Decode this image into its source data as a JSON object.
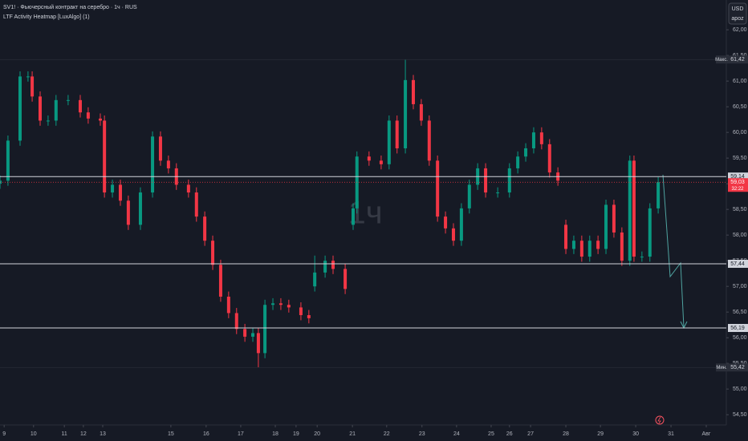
{
  "chart_data": {
    "type": "candlestick",
    "title": "SV1! · Фьючерсный контракт на серебро · 1ч · RUS",
    "subtitle": "LTF Activity Heatmap [LuxAlgo] (1)",
    "watermark": "1ч",
    "currency": "USD",
    "currency_note": "apoz",
    "up_color": "#089981",
    "down_color": "#f23645",
    "grid": false,
    "x": [
      0,
      2.3,
      5.8,
      8.1,
      9.3,
      11.6,
      13.9,
      16.2,
      19.7,
      23.2,
      25.5,
      29.0,
      30.2,
      32.5,
      34.8,
      37.1,
      40.6,
      44.1,
      46.4,
      48.7,
      51.0,
      54.5,
      56.8,
      59.2,
      61.5,
      63.8,
      66.1,
      68.4,
      70.8,
      73.1,
      74.7,
      76.6,
      78.9,
      81.2,
      83.5,
      87.0,
      89.3,
      91.0,
      94.0,
      96.3,
      99.8,
      102.1,
      103.2,
      106.7,
      110.2,
      112.5,
      114.8,
      117.2,
      119.5,
      121.8,
      124.1,
      126.5,
      128.8,
      131.1,
      133.4,
      135.7,
      138.1,
      140.4,
      143.9,
      147.3,
      149.7,
      152.0,
      154.3,
      156.6,
      158.9,
      161.3,
      163.6,
      165.9,
      168.2,
      170.5,
      172.9,
      175.2,
      177.5,
      179.8,
      182.1,
      183.3,
      185.6,
      187.9,
      190.3
    ],
    "open": [
      59.0,
      59.06,
      59.84,
      61.09,
      61.09,
      60.7,
      60.23,
      60.23,
      60.63,
      60.63,
      60.39,
      60.27,
      60.23,
      58.83,
      58.98,
      58.67,
      58.2,
      58.83,
      59.92,
      59.45,
      59.3,
      58.98,
      58.83,
      58.36,
      57.89,
      57.42,
      56.8,
      56.48,
      56.17,
      56.02,
      56.09,
      55.7,
      56.64,
      56.67,
      56.64,
      56.59,
      56.44,
      57.0,
      57.27,
      57.5,
      57.34,
      58.2,
      58.52,
      59.53,
      59.45,
      59.38,
      60.23,
      59.69,
      61.02,
      60.55,
      60.23,
      59.45,
      58.36,
      58.13,
      57.89,
      58.52,
      58.98,
      59.3,
      58.83,
      58.83,
      59.3,
      59.53,
      59.69,
      60.0,
      59.77,
      59.22,
      58.2,
      57.73,
      57.89,
      57.58,
      57.89,
      57.73,
      58.59,
      58.05,
      57.5,
      59.45,
      57.58,
      57.58,
      58.52
    ],
    "high": [
      59.16,
      59.94,
      61.19,
      61.19,
      61.19,
      60.8,
      60.33,
      60.73,
      60.73,
      60.73,
      60.49,
      60.37,
      60.33,
      59.08,
      59.08,
      58.77,
      58.93,
      60.02,
      60.02,
      59.55,
      59.4,
      59.08,
      58.93,
      58.46,
      57.99,
      57.52,
      56.9,
      56.58,
      56.27,
      56.19,
      56.19,
      56.74,
      56.77,
      56.77,
      56.74,
      56.69,
      56.54,
      57.6,
      57.6,
      57.6,
      57.44,
      58.62,
      59.63,
      59.63,
      59.55,
      60.33,
      60.33,
      61.42,
      61.12,
      60.65,
      60.33,
      59.55,
      58.46,
      58.23,
      58.62,
      59.08,
      59.4,
      59.4,
      58.93,
      59.4,
      59.63,
      59.79,
      60.1,
      60.1,
      59.87,
      59.32,
      58.3,
      57.99,
      57.99,
      57.99,
      57.99,
      58.69,
      58.69,
      58.15,
      59.55,
      59.55,
      57.68,
      58.62,
      59.13
    ],
    "low": [
      58.9,
      58.96,
      59.74,
      60.99,
      60.6,
      60.13,
      60.13,
      60.13,
      60.53,
      60.29,
      60.17,
      60.13,
      58.73,
      58.73,
      58.57,
      58.1,
      58.1,
      58.73,
      59.35,
      59.2,
      58.88,
      58.73,
      58.26,
      57.79,
      57.32,
      56.7,
      56.38,
      56.07,
      55.92,
      55.92,
      55.42,
      55.6,
      56.54,
      56.54,
      56.49,
      56.34,
      56.28,
      56.9,
      57.17,
      57.24,
      56.85,
      58.1,
      58.42,
      59.35,
      59.28,
      59.28,
      59.59,
      59.59,
      60.45,
      60.13,
      59.35,
      58.26,
      58.03,
      57.79,
      57.79,
      58.42,
      58.88,
      58.73,
      58.73,
      58.73,
      59.2,
      59.43,
      59.59,
      59.67,
      59.12,
      58.96,
      57.63,
      57.63,
      57.48,
      57.48,
      57.63,
      57.63,
      57.95,
      57.4,
      57.4,
      57.48,
      57.48,
      57.48,
      58.42
    ],
    "close": [
      59.06,
      59.84,
      61.09,
      61.09,
      60.7,
      60.23,
      60.23,
      60.63,
      60.63,
      60.39,
      60.27,
      60.23,
      58.83,
      58.98,
      58.67,
      58.2,
      58.83,
      59.92,
      59.45,
      59.3,
      58.98,
      58.83,
      58.36,
      57.89,
      57.42,
      56.8,
      56.48,
      56.17,
      56.02,
      56.09,
      55.7,
      56.64,
      56.67,
      56.64,
      56.59,
      56.44,
      56.38,
      57.27,
      57.5,
      57.34,
      56.95,
      58.52,
      59.53,
      59.45,
      59.38,
      60.23,
      59.69,
      61.02,
      60.55,
      60.23,
      59.45,
      58.36,
      58.13,
      57.89,
      58.52,
      58.98,
      59.3,
      58.83,
      58.83,
      59.3,
      59.53,
      59.69,
      60.0,
      59.77,
      59.22,
      59.06,
      57.73,
      57.89,
      57.58,
      57.89,
      57.73,
      58.59,
      58.05,
      57.5,
      59.45,
      57.58,
      57.58,
      58.52,
      59.03
    ],
    "xlim": [
      0,
      210
    ],
    "ylim": [
      54.3,
      62.58
    ],
    "xticks": [
      {
        "value": 1.2,
        "label": "9"
      },
      {
        "value": 9.7,
        "label": "10"
      },
      {
        "value": 18.6,
        "label": "11"
      },
      {
        "value": 24.1,
        "label": "12"
      },
      {
        "value": 29.7,
        "label": "13"
      },
      {
        "value": 49.4,
        "label": "15"
      },
      {
        "value": 59.6,
        "label": "16"
      },
      {
        "value": 69.6,
        "label": "17"
      },
      {
        "value": 79.6,
        "label": "18"
      },
      {
        "value": 85.6,
        "label": "19"
      },
      {
        "value": 91.7,
        "label": "20"
      },
      {
        "value": 101.9,
        "label": "21"
      },
      {
        "value": 111.8,
        "label": "22"
      },
      {
        "value": 122.0,
        "label": "23"
      },
      {
        "value": 132.0,
        "label": "24"
      },
      {
        "value": 142.0,
        "label": "25"
      },
      {
        "value": 147.3,
        "label": "26"
      },
      {
        "value": 153.4,
        "label": "27"
      },
      {
        "value": 163.6,
        "label": "28"
      },
      {
        "value": 173.6,
        "label": "29"
      },
      {
        "value": 183.8,
        "label": "30"
      },
      {
        "value": 194.0,
        "label": "31"
      },
      {
        "value": 204.2,
        "label": "Авг"
      }
    ],
    "yticks": [
      {
        "value": 54.5,
        "label": "54,50"
      },
      {
        "value": 55,
        "label": "55,00"
      },
      {
        "value": 55.5,
        "label": "55,50"
      },
      {
        "value": 56,
        "label": "56,00"
      },
      {
        "value": 56.5,
        "label": "56,50"
      },
      {
        "value": 57,
        "label": "57,00"
      },
      {
        "value": 57.5,
        "label": "57,50"
      },
      {
        "value": 58,
        "label": "58,00"
      },
      {
        "value": 58.5,
        "label": "58,50"
      },
      {
        "value": 59,
        "label": "59,00"
      },
      {
        "value": 59.5,
        "label": "59,50"
      },
      {
        "value": 60,
        "label": "60,00"
      },
      {
        "value": 60.5,
        "label": "60,50"
      },
      {
        "value": 61,
        "label": "61,00"
      },
      {
        "value": 61.5,
        "label": "61,50"
      },
      {
        "value": 62,
        "label": "62,00"
      }
    ],
    "levels": [
      {
        "value": 59.14,
        "label": "59,14"
      },
      {
        "value": 57.44,
        "label": "57,44"
      },
      {
        "value": 56.19,
        "label": "56,19"
      }
    ],
    "max": {
      "name": "Макс.",
      "value": 61.42,
      "label": "61,42"
    },
    "min": {
      "name": "Мин.",
      "value": 55.42,
      "label": "55,42"
    },
    "last": {
      "value": 59.03,
      "label": "59,03",
      "countdown": "32:22"
    }
  }
}
